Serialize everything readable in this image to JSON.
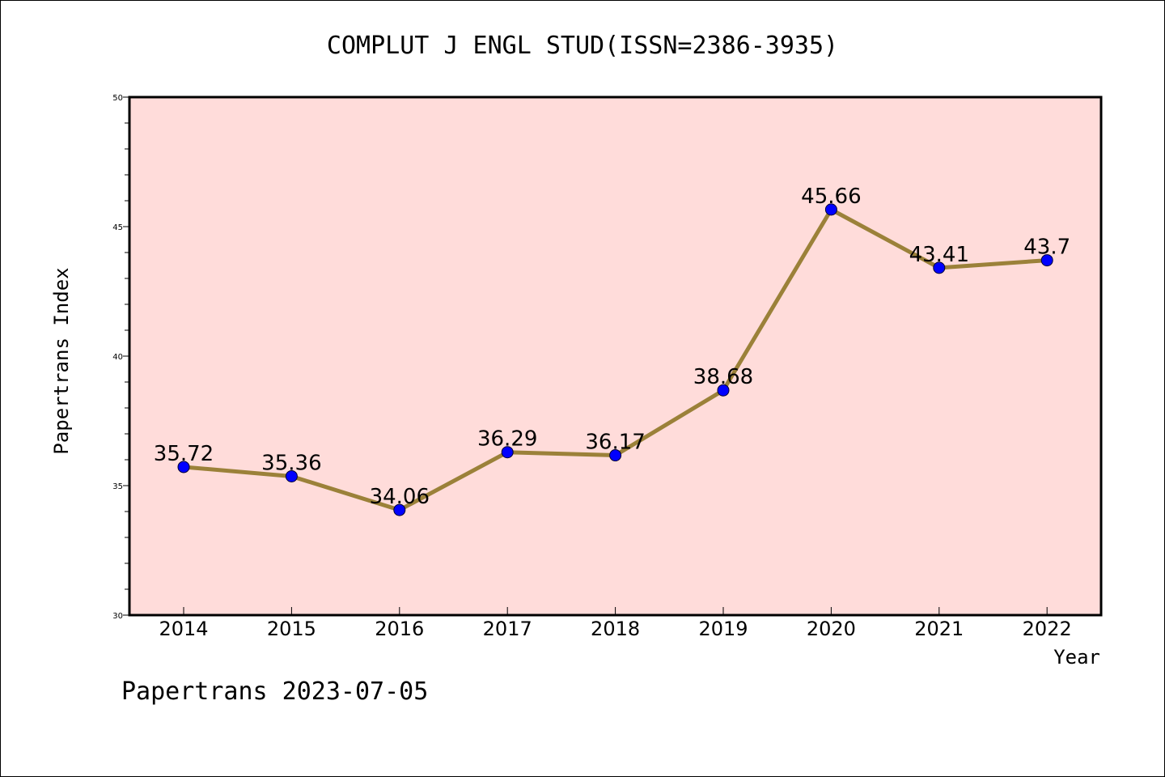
{
  "chart_data": {
    "type": "line",
    "title": "COMPLUT J ENGL STUD(ISSN=2386-3935)",
    "xlabel": "Year",
    "ylabel": "Papertrans Index",
    "categories": [
      "2014",
      "2015",
      "2016",
      "2017",
      "2018",
      "2019",
      "2020",
      "2021",
      "2022"
    ],
    "values": [
      35.72,
      35.36,
      34.06,
      36.29,
      36.17,
      38.68,
      45.66,
      43.41,
      43.7
    ],
    "data_labels": [
      "35.72",
      "35.36",
      "34.06",
      "36.29",
      "36.17",
      "38.68",
      "45.66",
      "43.41",
      "43.7"
    ],
    "ylim": [
      30,
      50
    ],
    "yticks": [
      "30",
      "35",
      "40",
      "45",
      "50"
    ],
    "grid": false,
    "legend": "none",
    "colors": {
      "plot_background": "#FFDCDA",
      "line": "#9B8139",
      "marker": "#0000FF"
    }
  },
  "footer": {
    "text": "Papertrans 2023-07-05"
  }
}
